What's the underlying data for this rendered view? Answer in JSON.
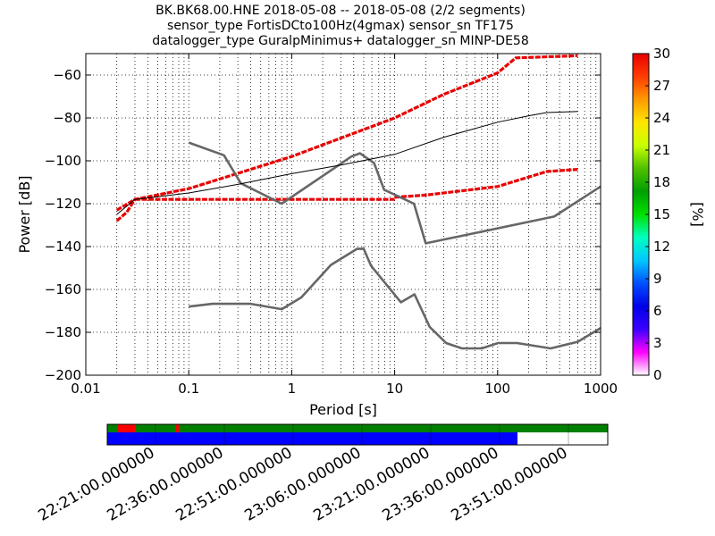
{
  "header": {
    "title_lines": [
      "BK.BK68.00.HNE   2018-05-08 -- 2018-05-08  (2/2 segments)",
      "sensor_type FortisDCto100Hz(4gmax) sensor_sn TF175",
      "datalogger_type GuralpMinimus+ datalogger_sn MINP-DE58"
    ]
  },
  "chart_data": {
    "type": "line",
    "xlabel": "Period [s]",
    "ylabel": "Power [dB]",
    "xscale": "log",
    "xlim": [
      0.01,
      1000
    ],
    "ylim": [
      -200,
      -50
    ],
    "grid": true,
    "x_ticks": [
      0.01,
      0.1,
      1,
      10,
      100,
      1000
    ],
    "x_tick_labels": [
      "0.01",
      "0.1",
      "1",
      "10",
      "100",
      "1000"
    ],
    "y_ticks": [
      -200,
      -180,
      -160,
      -140,
      -120,
      -100,
      -80,
      -60
    ],
    "y_tick_labels": [
      "−200",
      "−180",
      "−160",
      "−140",
      "−120",
      "−100",
      "−80",
      "−60"
    ],
    "noise_models": [
      {
        "id": "high_noise_model",
        "color": "#666666",
        "points": [
          [
            0.1,
            -91.5
          ],
          [
            0.22,
            -97.4
          ],
          [
            0.32,
            -110.5
          ],
          [
            0.8,
            -120
          ],
          [
            3.8,
            -98
          ],
          [
            4.6,
            -96.5
          ],
          [
            6.3,
            -101
          ],
          [
            7.9,
            -113.5
          ],
          [
            15.4,
            -120
          ],
          [
            20,
            -138.5
          ],
          [
            354,
            -126
          ],
          [
            1000,
            -112
          ]
        ]
      },
      {
        "id": "low_noise_model",
        "color": "#666666",
        "points": [
          [
            0.1,
            -168
          ],
          [
            0.17,
            -166.7
          ],
          [
            0.4,
            -166.7
          ],
          [
            0.8,
            -169.2
          ],
          [
            1.24,
            -163.7
          ],
          [
            2.4,
            -148.6
          ],
          [
            4.3,
            -141.1
          ],
          [
            5,
            -141
          ],
          [
            5.9,
            -149
          ],
          [
            10.3,
            -163.2
          ],
          [
            11.5,
            -166
          ],
          [
            15.6,
            -162.3
          ],
          [
            21.9,
            -177.5
          ],
          [
            31.6,
            -185
          ],
          [
            45,
            -187.5
          ],
          [
            70,
            -187.5
          ],
          [
            101,
            -185
          ],
          [
            154,
            -185
          ],
          [
            328,
            -187.5
          ],
          [
            600,
            -184.4
          ],
          [
            1000,
            -178
          ]
        ]
      }
    ],
    "mode_line": {
      "id": "mode",
      "color": "#000000",
      "points": [
        [
          0.02,
          -125
        ],
        [
          0.03,
          -118
        ],
        [
          0.1,
          -115
        ],
        [
          0.3,
          -111
        ],
        [
          1,
          -106
        ],
        [
          3,
          -102
        ],
        [
          10,
          -97
        ],
        [
          30,
          -89
        ],
        [
          100,
          -82
        ],
        [
          200,
          -79
        ],
        [
          300,
          -77.5
        ],
        [
          600,
          -77
        ]
      ]
    },
    "psd_density": {
      "value_range_percent": [
        0,
        30
      ],
      "bands": [
        {
          "id": "steep-low",
          "value": 30,
          "points": [
            [
              0.02,
              -128
            ],
            [
              0.025,
              -124
            ],
            [
              0.03,
              -118
            ]
          ]
        },
        {
          "id": "flat-118",
          "value": 30,
          "points": [
            [
              0.03,
              -118
            ],
            [
              10,
              -118
            ]
          ]
        },
        {
          "id": "upper",
          "value": 30,
          "points": [
            [
              0.02,
              -123
            ],
            [
              0.03,
              -118
            ],
            [
              0.1,
              -113
            ],
            [
              1,
              -98
            ],
            [
              10,
              -80
            ],
            [
              30,
              -69
            ],
            [
              100,
              -59
            ],
            [
              150,
              -52
            ],
            [
              600,
              -51
            ]
          ]
        },
        {
          "id": "lower",
          "value": 30,
          "points": [
            [
              10,
              -117
            ],
            [
              20,
              -116
            ],
            [
              100,
              -112
            ],
            [
              300,
              -105
            ],
            [
              600,
              -104
            ]
          ]
        }
      ]
    },
    "colorbar": {
      "label": "[%]",
      "ticks": [
        0,
        3,
        6,
        9,
        12,
        15,
        18,
        21,
        24,
        27,
        30
      ],
      "colors": [
        "#ffffff",
        "#ff00ff",
        "#3a00ff",
        "#0000e8",
        "#0050ff",
        "#00c8ff",
        "#00ffc0",
        "#00e000",
        "#00a000",
        "#50c000",
        "#c8ff00",
        "#ffe600",
        "#ff9a00",
        "#ff3c00",
        "#e80000"
      ]
    },
    "timeline": {
      "ticks": [
        "22:21:00.000000",
        "22:36:00.000000",
        "22:51:00.000000",
        "23:06:00.000000",
        "23:21:00.000000",
        "23:36:00.000000",
        "23:51:00.000000"
      ]
    }
  }
}
